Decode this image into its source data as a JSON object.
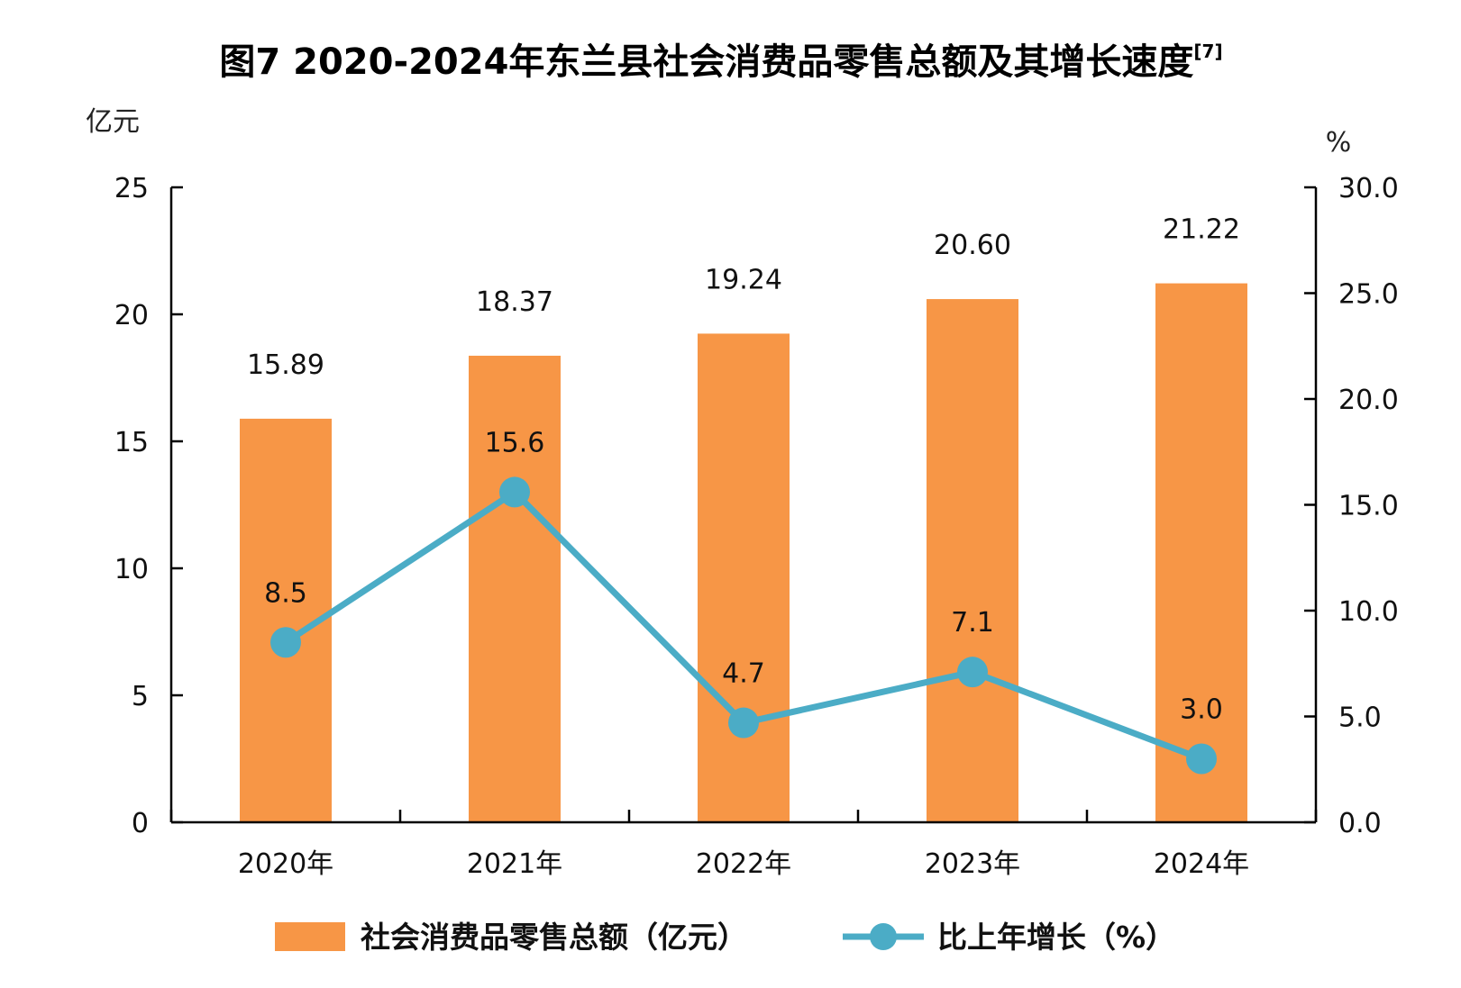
{
  "chart_data": {
    "type": "bar+line",
    "title": "图7  2020-2024年东兰县社会消费品零售总额及其增长速度",
    "title_note": "[7]",
    "categories": [
      "2020年",
      "2021年",
      "2022年",
      "2023年",
      "2024年"
    ],
    "left_axis": {
      "unit": "亿元",
      "ylim": [
        0,
        25
      ],
      "ticks": [
        "0",
        "5",
        "10",
        "15",
        "20",
        "25"
      ],
      "tick_values": [
        0,
        5,
        10,
        15,
        20,
        25
      ]
    },
    "right_axis": {
      "unit": "%",
      "ylim": [
        0,
        30
      ],
      "ticks": [
        "0.0",
        "5.0",
        "10.0",
        "15.0",
        "20.0",
        "25.0",
        "30.0"
      ],
      "tick_values": [
        0,
        5,
        10,
        15,
        20,
        25,
        30
      ]
    },
    "series": [
      {
        "name": "社会消费品零售总额（亿元）",
        "type": "bar",
        "axis": "left",
        "values": [
          15.89,
          18.37,
          19.24,
          20.6,
          21.22
        ],
        "labels": [
          "15.89",
          "18.37",
          "19.24",
          "20.60",
          "21.22"
        ],
        "color": "#F79646"
      },
      {
        "name": "比上年增长（%）",
        "type": "line",
        "axis": "right",
        "values": [
          8.5,
          15.6,
          4.7,
          7.1,
          3.0
        ],
        "labels": [
          "8.5",
          "15.6",
          "4.7",
          "7.1",
          "3.0"
        ],
        "color": "#4BACC6"
      }
    ],
    "legend_position": "bottom",
    "grid": false
  }
}
